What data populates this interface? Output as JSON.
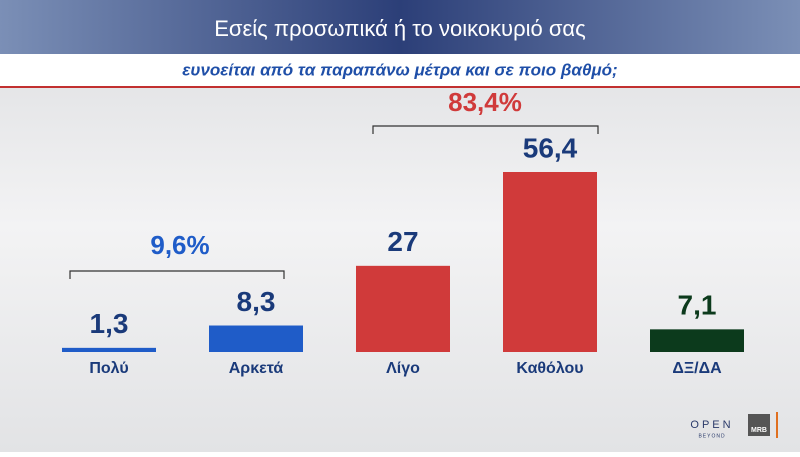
{
  "chart_data": {
    "type": "bar",
    "title": "Εσείς προσωπικά ή το νοικοκυριό σας",
    "subtitle": "ευνοείται από τα παραπάνω μέτρα και σε ποιο βαθμό;",
    "categories": [
      "Πολύ",
      "Αρκετά",
      "Λίγο",
      "Καθόλου",
      "ΔΞ/ΔΑ"
    ],
    "values": [
      1.3,
      8.3,
      27,
      56.4,
      7.1
    ],
    "value_labels": [
      "1,3",
      "8,3",
      "27",
      "56,4",
      "7,1"
    ],
    "colors": [
      "#1f5cc8",
      "#1f5cc8",
      "#d03a3a",
      "#d03a3a",
      "#0c3a1c"
    ],
    "annotations": [
      {
        "text": "9,6%",
        "color": "#1f5cc8"
      },
      {
        "text": "83,4%",
        "color": "#d03a3a"
      }
    ],
    "logos": [
      "OPEN",
      "BEYOND",
      "MRB"
    ]
  }
}
